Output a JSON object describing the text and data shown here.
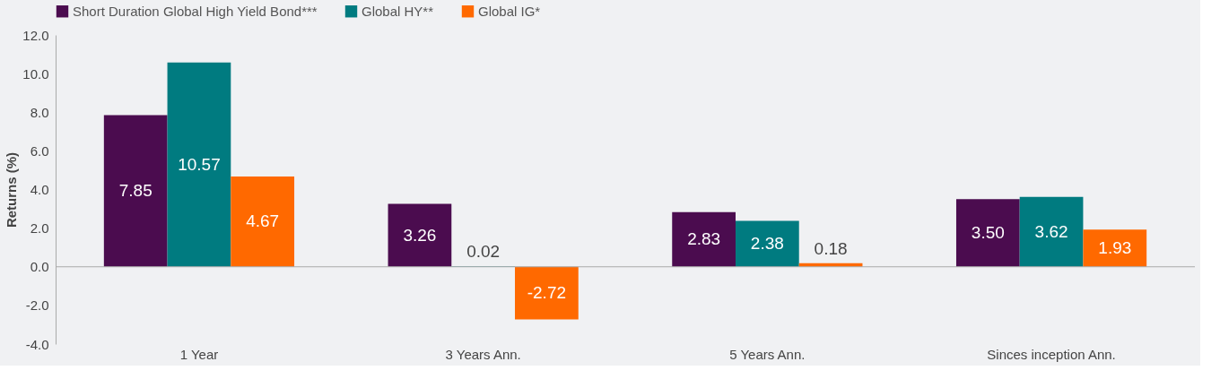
{
  "chart_data": {
    "type": "bar",
    "ylabel": "Returns (%)",
    "categories": [
      "1 Year",
      "3 Years Ann.",
      "5 Years Ann.",
      "Sinces inception Ann."
    ],
    "series": [
      {
        "name": "Short Duration Global High Yield Bond***",
        "color": "#4b0c4f",
        "values": [
          7.85,
          3.26,
          2.83,
          3.5
        ],
        "value_labels": [
          "7.85",
          "3.26",
          "2.83",
          "3.50"
        ]
      },
      {
        "name": "Global HY**",
        "color": "#007b80",
        "values": [
          10.57,
          0.02,
          2.38,
          3.62
        ],
        "value_labels": [
          "10.57",
          "0.02",
          "2.38",
          "3.62"
        ]
      },
      {
        "name": "Global IG*",
        "color": "#ff6900",
        "values": [
          4.67,
          -2.72,
          0.18,
          1.93
        ],
        "value_labels": [
          "4.67",
          "-2.72",
          "0.18",
          "1.93"
        ]
      }
    ],
    "ylim": [
      -4,
      12
    ],
    "yticks": [
      {
        "value": -4,
        "label": "-4.0"
      },
      {
        "value": -2,
        "label": "-2.0"
      },
      {
        "value": 0,
        "label": "0.0"
      },
      {
        "value": 2,
        "label": "2.0"
      },
      {
        "value": 4,
        "label": "4.0"
      },
      {
        "value": 6,
        "label": "6.0"
      },
      {
        "value": 8,
        "label": "8.0"
      },
      {
        "value": 10,
        "label": "10.0"
      },
      {
        "value": 12,
        "label": "12.0"
      }
    ],
    "ref_lines": [
      {
        "axis": "y",
        "value": 0,
        "color": "#aaaaaa"
      }
    ],
    "grid": false,
    "legend": "top"
  }
}
